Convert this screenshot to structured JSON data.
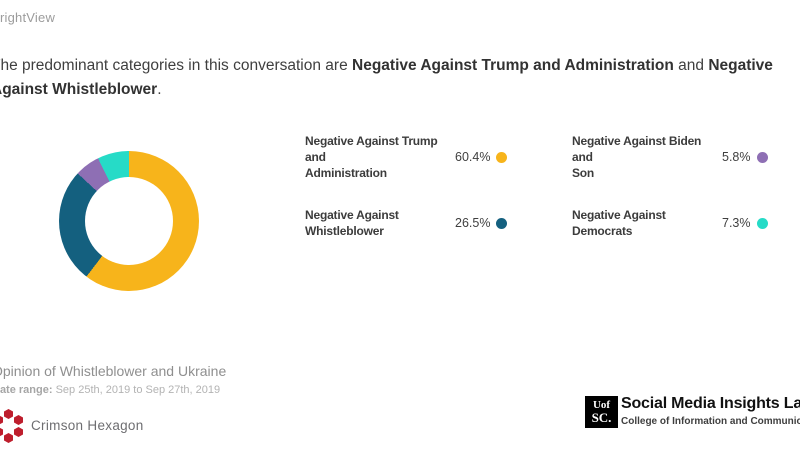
{
  "brand": {
    "text": "rightView"
  },
  "headline": {
    "prefix": "The predominant categories in this conversation are ",
    "category1": "Negative Against Trump and Administration",
    "connector": " and ",
    "category2_word1": "Negative",
    "category2_rest": "Against Whistleblower",
    "suffix": "."
  },
  "chart_data": {
    "type": "pie",
    "subtype": "donut",
    "title": "Opinion of Whistleblower and Ukraine",
    "categories": [
      "Negative Against Trump and Administration",
      "Negative Against Whistleblower",
      "Negative Against Biden and Son",
      "Negative Against Democrats"
    ],
    "values": [
      60.4,
      26.5,
      5.8,
      7.3
    ],
    "unit": "%",
    "colors": [
      "#F7B41B",
      "#14607F",
      "#8E6FB4",
      "#26DBC7"
    ],
    "start_angle_deg": 0,
    "direction": "clockwise",
    "hole_ratio": 0.63,
    "legend_position": "right"
  },
  "legend": {
    "items": [
      {
        "label": "Negative Against Trump and\nAdministration",
        "value": "60.4%",
        "color": "#F7B41B"
      },
      {
        "label": "Negative Against\nWhistleblower",
        "value": "26.5%",
        "color": "#14607F"
      },
      {
        "label": "Negative Against Biden and\nSon",
        "value": "5.8%",
        "color": "#8E6FB4"
      },
      {
        "label": "Negative Against Democrats",
        "value": "7.3%",
        "color": "#26DBC7"
      }
    ]
  },
  "footer": {
    "title": "Opinion of Whistleblower and Ukraine",
    "date_label": "Date range:",
    "date_value": " Sep 25th, 2019 to Sep 27th, 2019",
    "vendor": "Crimson Hexagon"
  },
  "branding_right": {
    "logo_line1": "Uof",
    "logo_line2": "SC.",
    "lab_name": "Social Media Insights Lab",
    "college": "College of Information and Communications"
  }
}
